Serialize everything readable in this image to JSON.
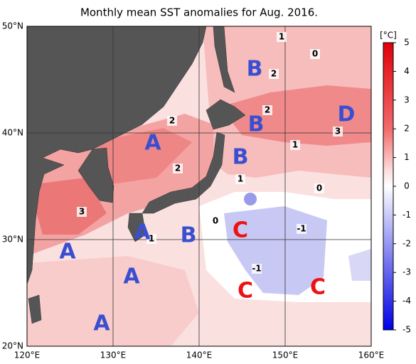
{
  "title": "Monthly mean SST anomalies for Aug. 2016.",
  "unit": "[°C]",
  "colorbar_ticks": [
    "5",
    "4",
    "3",
    "2",
    "1",
    "0",
    "-1",
    "-2",
    "-3",
    "-4",
    "-5"
  ],
  "lon_labels": [
    "120°E",
    "130°E",
    "140°E",
    "150°E",
    "160°E"
  ],
  "lat_labels": [
    "50°N",
    "40°N",
    "30°N",
    "20°N"
  ],
  "region_labels": [
    "A",
    "A",
    "A",
    "A",
    "A",
    "B",
    "B",
    "B",
    "B",
    "C",
    "C",
    "C",
    "D"
  ],
  "contour_labels": [
    "1",
    "0",
    "2",
    "2",
    "2",
    "2",
    "1",
    "3",
    "1",
    "0",
    "0",
    "-1",
    "1",
    "-1",
    "3"
  ]
}
